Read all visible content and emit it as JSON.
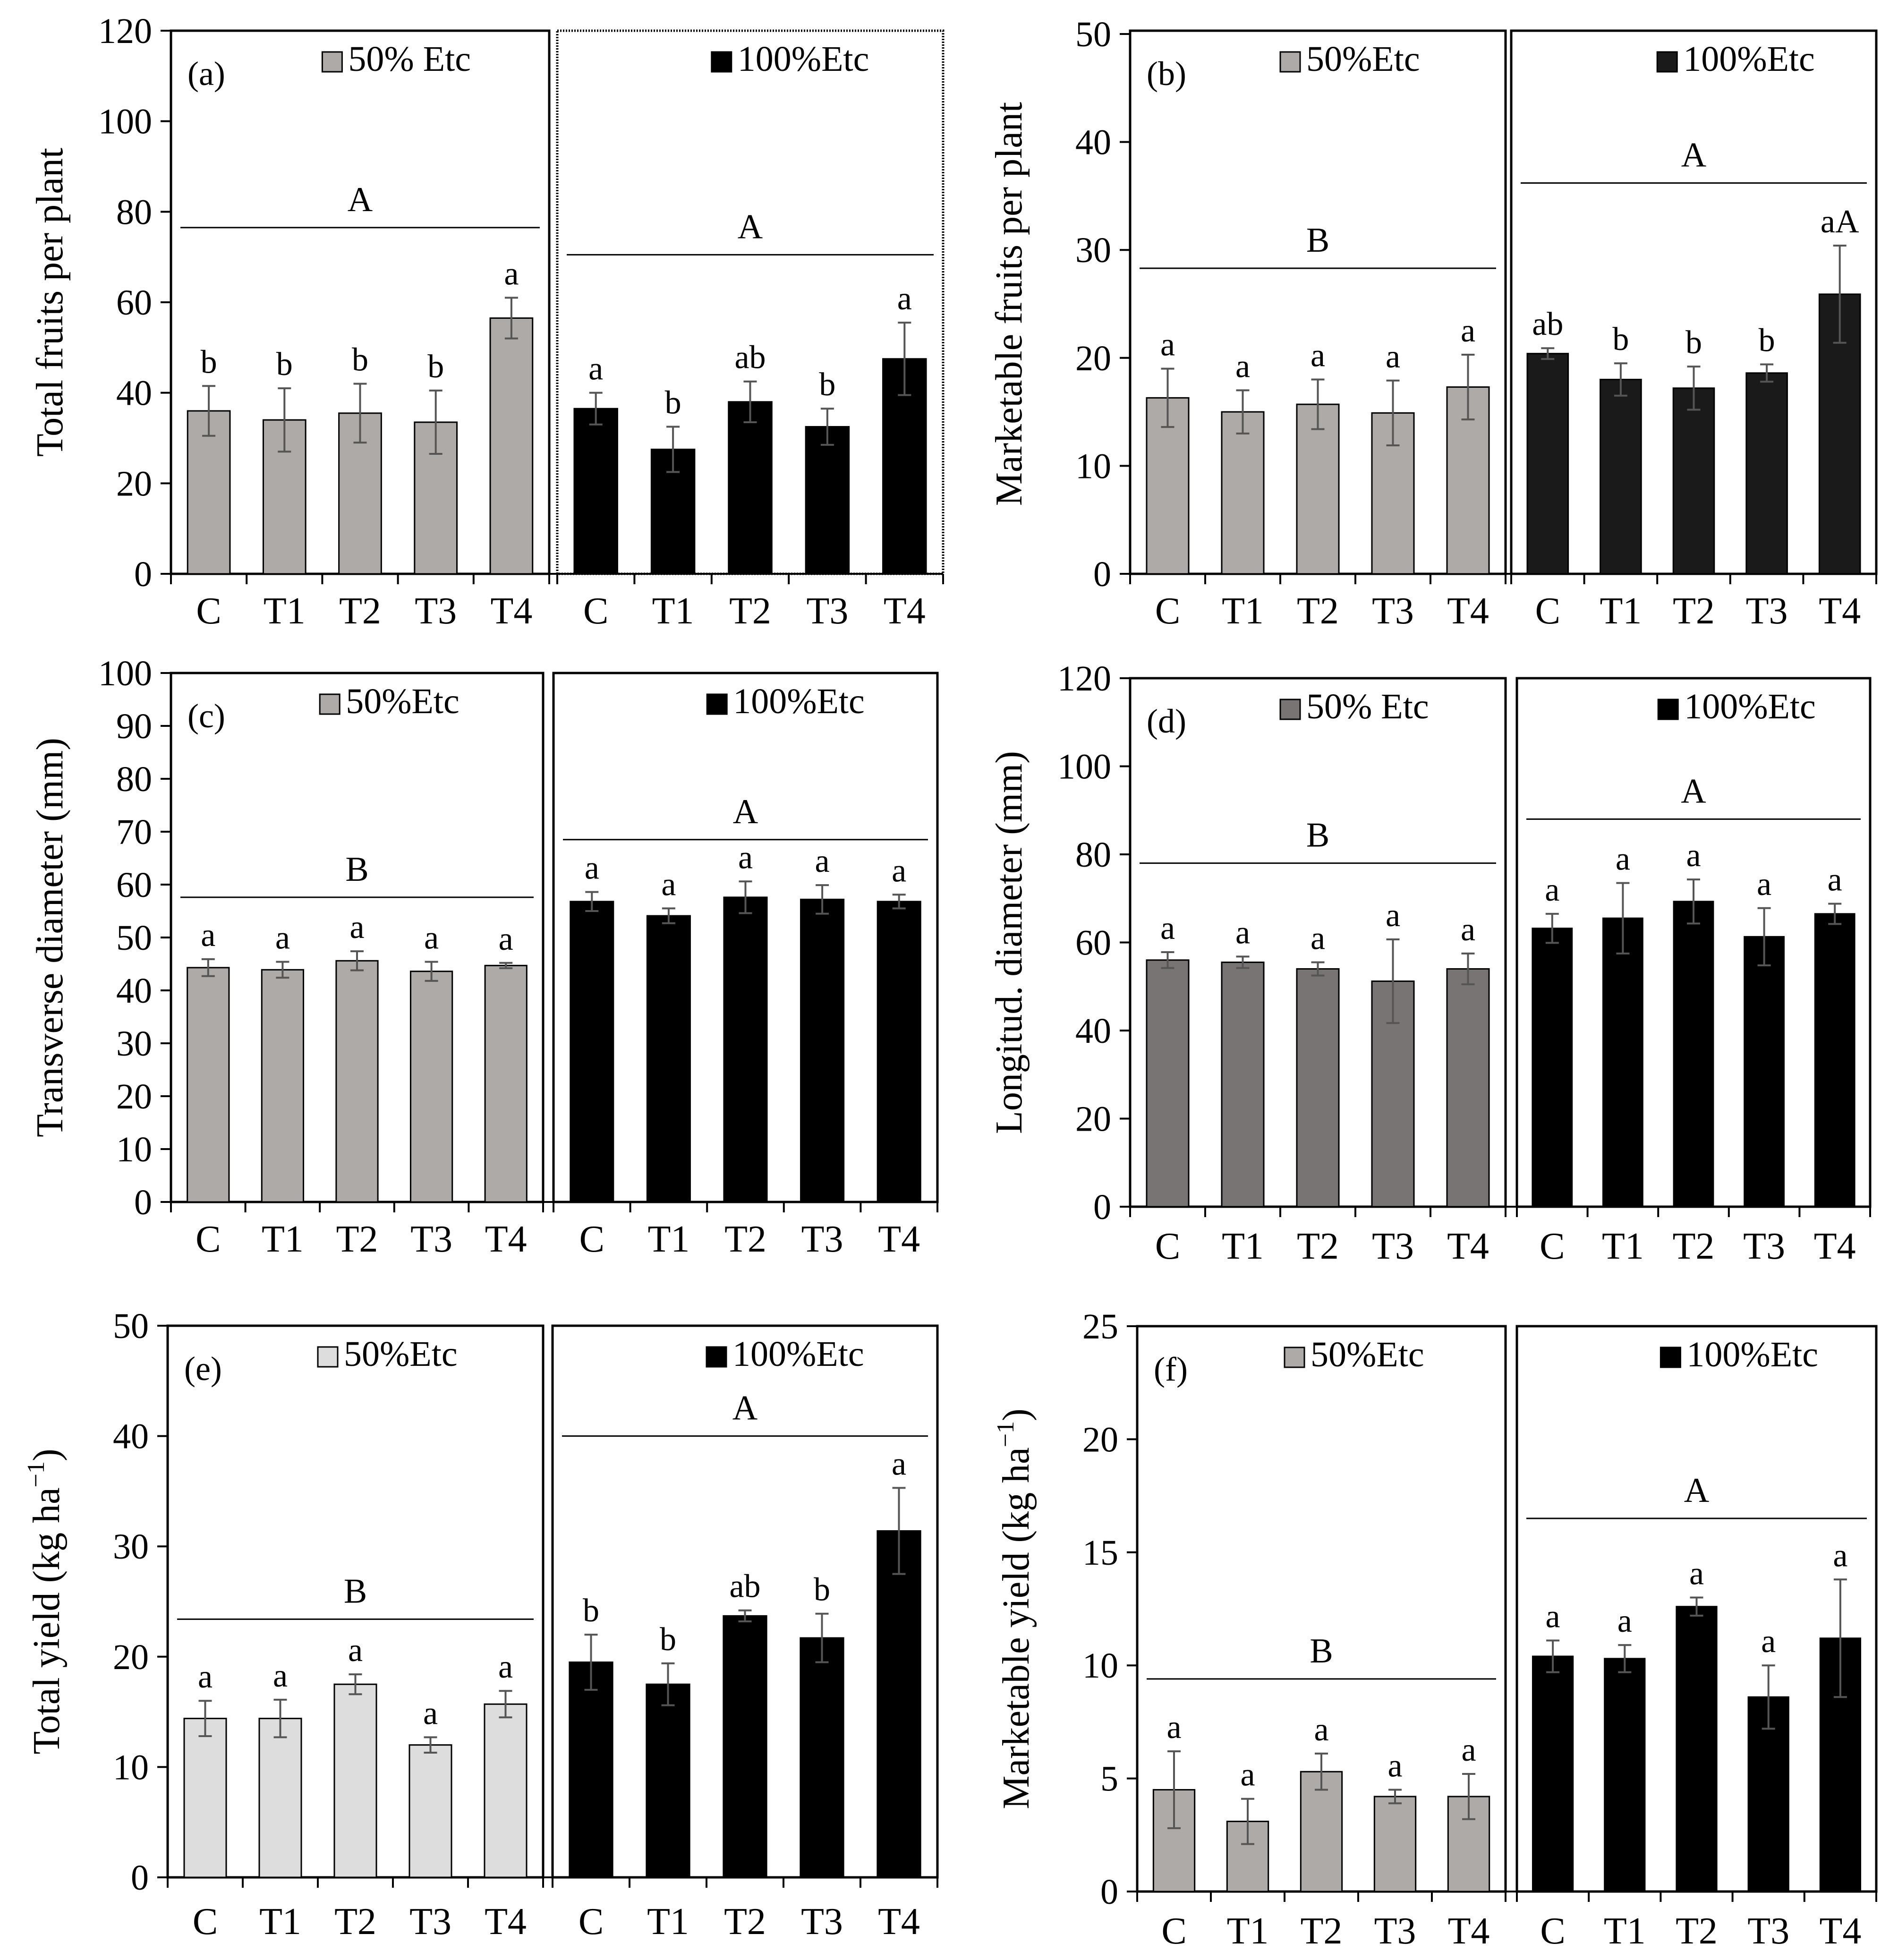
{
  "chart_data": [
    {
      "type": "bar",
      "panel_label": "(a)",
      "ylabel": "Total  fruits per plant",
      "ylim": [
        0,
        120
      ],
      "ytick_step": 20,
      "categories": [
        "C",
        "T1",
        "T2",
        "T3",
        "T4"
      ],
      "series": [
        {
          "name": "50% Etc",
          "color": "#aeaaa7",
          "values": [
            36,
            34,
            35.5,
            33.5,
            56.5
          ],
          "errors": [
            5.5,
            7,
            6.5,
            7,
            4.5
          ],
          "letters": [
            "b",
            "b",
            "b",
            "b",
            "a"
          ],
          "group_letter": "A",
          "group_line": 76.5
        },
        {
          "name": "100%Etc",
          "color": "#000000",
          "values": [
            36.5,
            27.5,
            38,
            32.5,
            47.5
          ],
          "errors": [
            3.5,
            5,
            4.5,
            4,
            8
          ],
          "letters": [
            "a",
            "b",
            "ab",
            "b",
            "a"
          ],
          "group_letter": "A",
          "group_line": 70.5
        }
      ]
    },
    {
      "type": "bar",
      "panel_label": "(b)",
      "ylabel": "Marketable  fruits per plant",
      "ylim": [
        0,
        50
      ],
      "ytick_step": 10,
      "categories": [
        "C",
        "T1",
        "T2",
        "T3",
        "T4"
      ],
      "series": [
        {
          "name": "50%Etc",
          "color": "#aeaaa7",
          "values": [
            16.3,
            15,
            15.7,
            14.9,
            17.3
          ],
          "errors": [
            2.7,
            2,
            2.3,
            3,
            3
          ],
          "letters": [
            "a",
            "a",
            "a",
            "a",
            "a"
          ],
          "group_letter": "B",
          "group_line": 28.3
        },
        {
          "name": "100%Etc",
          "color": "#1a1a1a",
          "values": [
            20.4,
            18,
            17.2,
            18.6,
            25.9
          ],
          "errors": [
            0.5,
            1.5,
            2,
            0.8,
            4.5
          ],
          "letters": [
            "ab",
            "b",
            "b",
            "b",
            "aA"
          ],
          "group_letter": "A",
          "group_line": 36.2
        }
      ]
    },
    {
      "type": "bar",
      "panel_label": "(c)",
      "ylabel": "Transverse  diameter  (mm)",
      "ylim": [
        0,
        100
      ],
      "ytick_step": 10,
      "categories": [
        "C",
        "T1",
        "T2",
        "T3",
        "T4"
      ],
      "series": [
        {
          "name": "50%Etc",
          "color": "#aeaaa7",
          "values": [
            44.3,
            43.9,
            45.6,
            43.6,
            44.7
          ],
          "errors": [
            1.6,
            1.5,
            1.8,
            1.8,
            0.5
          ],
          "letters": [
            "a",
            "a",
            "a",
            "a",
            "a"
          ],
          "group_letter": "B",
          "group_line": 57.6
        },
        {
          "name": "100%Etc",
          "color": "#000000",
          "values": [
            56.8,
            54.1,
            57.6,
            57.2,
            56.8
          ],
          "errors": [
            1.8,
            1.4,
            3,
            2.7,
            1.3
          ],
          "letters": [
            "a",
            "a",
            "a",
            "a",
            "a"
          ],
          "group_letter": "A",
          "group_line": 68.5
        }
      ]
    },
    {
      "type": "bar",
      "panel_label": "(d)",
      "ylabel": "Longitud.  diameter  (mm)",
      "ylim": [
        0,
        120
      ],
      "ytick_step": 20,
      "categories": [
        "C",
        "T1",
        "T2",
        "T3",
        "T4"
      ],
      "series": [
        {
          "name": "50% Etc",
          "color": "#787473",
          "values": [
            56,
            55.5,
            54,
            51.2,
            54
          ],
          "errors": [
            1.8,
            1.3,
            1.5,
            9.5,
            3.5
          ],
          "letters": [
            "a",
            "a",
            "a",
            "a",
            "a"
          ],
          "group_letter": "B",
          "group_line": 78
        },
        {
          "name": "100%Etc",
          "color": "#000000",
          "values": [
            63.2,
            65.5,
            69.3,
            61.3,
            66.5
          ],
          "errors": [
            3.3,
            8,
            5,
            6.5,
            2.3
          ],
          "letters": [
            "a",
            "a",
            "a",
            "a",
            "a"
          ],
          "group_letter": "A",
          "group_line": 88
        }
      ]
    },
    {
      "type": "bar",
      "panel_label": "(e)",
      "ylabel": "Total yield (kg ha",
      "ylabel_sup": "−1",
      "ylabel_close": ")",
      "ylim": [
        0,
        50
      ],
      "ytick_step": 10,
      "categories": [
        "C",
        "T1",
        "T2",
        "T3",
        "T4"
      ],
      "series": [
        {
          "name": "50%Etc",
          "color": "#dddddd",
          "values": [
            14.4,
            14.4,
            17.5,
            12,
            15.7
          ],
          "errors": [
            1.6,
            1.7,
            0.9,
            0.7,
            1.2
          ],
          "letters": [
            "a",
            "a",
            "a",
            "a",
            "a"
          ],
          "group_letter": "B",
          "group_line": 23.4
        },
        {
          "name": "100%Etc",
          "color": "#000000",
          "values": [
            19.5,
            17.5,
            23.7,
            21.7,
            31.4
          ],
          "errors": [
            2.5,
            1.9,
            0.5,
            2.2,
            3.9
          ],
          "letters": [
            "b",
            "b",
            "ab",
            "b",
            "a"
          ],
          "group_letter": "A",
          "group_line": 40
        }
      ]
    },
    {
      "type": "bar",
      "panel_label": "(f)",
      "ylabel": "Marketable  yield (kg ha",
      "ylabel_sup": "−1",
      "ylabel_close": ")",
      "ylim": [
        0,
        25
      ],
      "ytick_step": 5,
      "categories": [
        "C",
        "T1",
        "T2",
        "T3",
        "T4"
      ],
      "series": [
        {
          "name": "50%Etc",
          "color": "#aeaaa7",
          "values": [
            4.5,
            3.1,
            5.3,
            4.2,
            4.2
          ],
          "errors": [
            1.7,
            1,
            0.8,
            0.3,
            1
          ],
          "letters": [
            "a",
            "a",
            "a",
            "a",
            "a"
          ],
          "group_letter": "B",
          "group_line": 9.4
        },
        {
          "name": "100%Etc",
          "color": "#000000",
          "values": [
            10.4,
            10.3,
            12.6,
            8.6,
            11.2
          ],
          "errors": [
            0.7,
            0.6,
            0.4,
            1.4,
            2.6
          ],
          "letters": [
            "a",
            "a",
            "a",
            "a",
            "a"
          ],
          "group_letter": "A",
          "group_line": 16.5
        }
      ]
    }
  ]
}
